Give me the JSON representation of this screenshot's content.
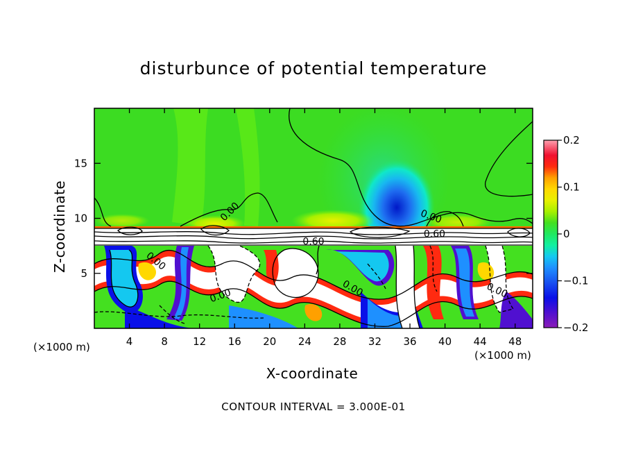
{
  "chart_data": {
    "type": "heatmap",
    "title": "disturbunce of potential temperature",
    "xlabel": "X-coordinate",
    "ylabel": "Z-coordinate",
    "x_unit": "(×1000 m)",
    "xlim": [
      0,
      50
    ],
    "ylim": [
      0,
      20
    ],
    "x_ticks": [
      4,
      8,
      12,
      16,
      20,
      24,
      28,
      32,
      36,
      40,
      44,
      48
    ],
    "y_ticks": [
      5,
      10,
      15
    ],
    "colorbar": {
      "min": -0.2,
      "max": 0.2,
      "tick_values": [
        0.2,
        0.1,
        0,
        -0.1,
        -0.2
      ],
      "tick_labels": [
        "0.2",
        "0.1",
        "0",
        "−0.1",
        "−0.2"
      ],
      "colors": [
        "#8B1CB8",
        "#5010D0",
        "#0A10E8",
        "#1850F0",
        "#1E90FF",
        "#14C8F0",
        "#10E8D8",
        "#12F0A0",
        "#20E860",
        "#44E020",
        "#6EF010",
        "#A8F000",
        "#E8F000",
        "#FFD800",
        "#FFA000",
        "#FF6A00",
        "#FF2A10",
        "#F01030",
        "#F8507A",
        "#FFA0B0"
      ]
    },
    "contour_labels": [
      {
        "text": "0.00",
        "x": 15.7,
        "z": 10.4,
        "angle": -45
      },
      {
        "text": "0.00",
        "x": 38.3,
        "z": 9.9,
        "angle": 20
      },
      {
        "text": "0.60",
        "x": 25.0,
        "z": 7.6,
        "angle": 0
      },
      {
        "text": "0.60",
        "x": 38.8,
        "z": 8.3,
        "angle": 0
      },
      {
        "text": "0.00",
        "x": 6.8,
        "z": 5.9,
        "angle": 40
      },
      {
        "text": "0.00",
        "x": 14.5,
        "z": 2.7,
        "angle": -20
      },
      {
        "text": "0.00",
        "x": 29.3,
        "z": 3.4,
        "angle": 30
      },
      {
        "text": "0.00",
        "x": 45.8,
        "z": 3.2,
        "angle": 25
      }
    ],
    "contour_interval_text": "CONTOUR INTERVAL = 3.000E-01",
    "grid": false,
    "legend": "right colorbar"
  }
}
